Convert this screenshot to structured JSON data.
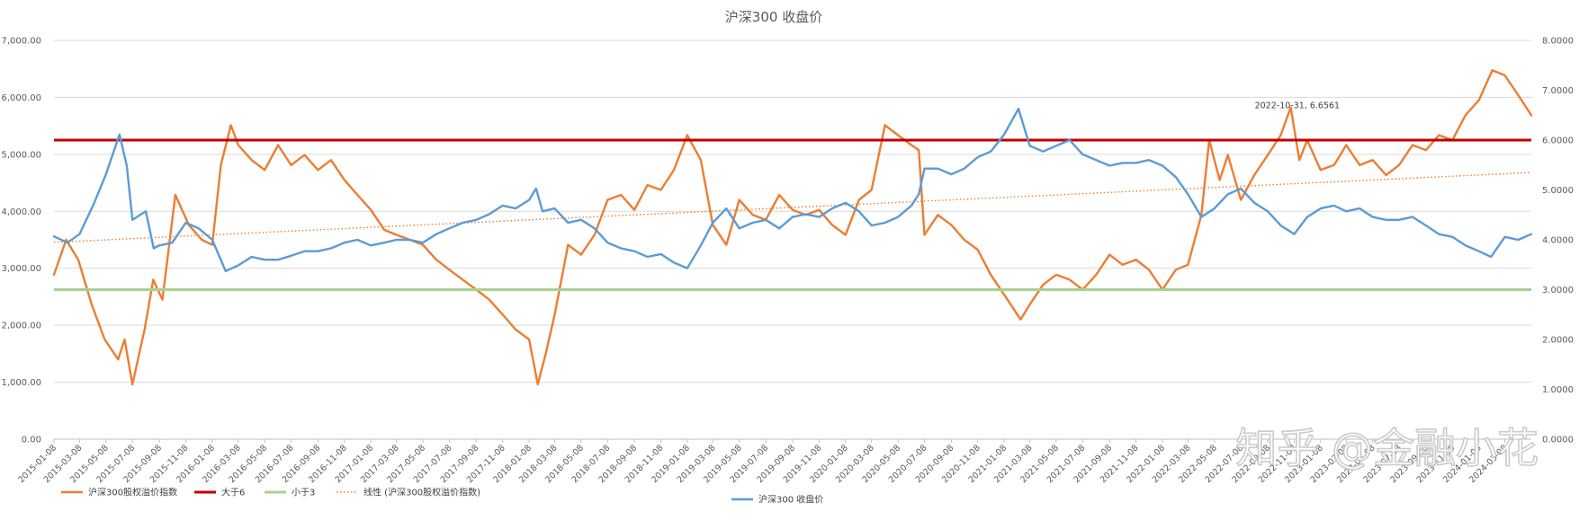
{
  "chart_data": {
    "type": "line",
    "title": "沪深300 收盘价",
    "y_left": {
      "min": 0,
      "max": 7000,
      "step": 1000,
      "ticks": [
        "0.00",
        "1,000.00",
        "2,000.00",
        "3,000.00",
        "4,000.00",
        "5,000.00",
        "6,000.00",
        "7,000.00"
      ]
    },
    "y_right": {
      "min": 0,
      "max": 8,
      "step": 1,
      "ticks": [
        "0.0000",
        "1.0000",
        "2.0000",
        "3.0000",
        "4.0000",
        "5.0000",
        "6.0000",
        "7.0000",
        "8.0000"
      ]
    },
    "x_range": [
      "2015-01-08",
      "2024-05-08"
    ],
    "x_ticks": [
      "2015-01-08",
      "2015-03-08",
      "2015-05-08",
      "2015-07-08",
      "2015-09-08",
      "2015-11-08",
      "2016-01-08",
      "2016-03-08",
      "2016-05-08",
      "2016-07-08",
      "2016-09-08",
      "2016-11-08",
      "2017-01-08",
      "2017-03-08",
      "2017-05-08",
      "2017-07-08",
      "2017-09-08",
      "2017-11-08",
      "2018-01-08",
      "2018-03-08",
      "2018-05-08",
      "2018-07-08",
      "2018-09-08",
      "2018-11-08",
      "2019-01-08",
      "2019-03-08",
      "2019-05-08",
      "2019-07-08",
      "2019-09-08",
      "2019-11-08",
      "2020-01-08",
      "2020-03-08",
      "2020-05-08",
      "2020-07-08",
      "2020-09-08",
      "2020-11-08",
      "2021-01-08",
      "2021-03-08",
      "2021-05-08",
      "2021-07-08",
      "2021-09-08",
      "2021-11-08",
      "2022-01-08",
      "2022-03-08",
      "2022-05-08",
      "2022-07-08",
      "2022-09-08",
      "2022-11-08",
      "2023-01-08",
      "2023-03-08",
      "2023-05-08",
      "2023-07-08",
      "2023-09-08",
      "2023-11-08",
      "2024-01-08",
      "2024-03-08"
    ],
    "series": [
      {
        "name": "沪深300股权溢价指数",
        "axis": "right",
        "color": "#ED7D31",
        "points": [
          [
            "2015-01-08",
            3.3
          ],
          [
            "2015-02-05",
            4.0
          ],
          [
            "2015-03-05",
            3.6
          ],
          [
            "2015-04-05",
            2.7
          ],
          [
            "2015-05-05",
            2.0
          ],
          [
            "2015-06-05",
            1.6
          ],
          [
            "2015-06-20",
            2.0
          ],
          [
            "2015-07-08",
            1.1
          ],
          [
            "2015-08-05",
            2.2
          ],
          [
            "2015-08-25",
            3.2
          ],
          [
            "2015-09-15",
            2.8
          ],
          [
            "2015-10-15",
            4.9
          ],
          [
            "2015-11-15",
            4.3
          ],
          [
            "2015-12-15",
            4.0
          ],
          [
            "2016-01-08",
            3.9
          ],
          [
            "2016-01-28",
            5.5
          ],
          [
            "2016-02-20",
            6.3
          ],
          [
            "2016-03-08",
            5.9
          ],
          [
            "2016-04-08",
            5.6
          ],
          [
            "2016-05-08",
            5.4
          ],
          [
            "2016-06-08",
            5.9
          ],
          [
            "2016-07-08",
            5.5
          ],
          [
            "2016-08-08",
            5.7
          ],
          [
            "2016-09-08",
            5.4
          ],
          [
            "2016-10-08",
            5.6
          ],
          [
            "2016-11-08",
            5.2
          ],
          [
            "2016-12-08",
            4.9
          ],
          [
            "2017-01-08",
            4.6
          ],
          [
            "2017-02-08",
            4.2
          ],
          [
            "2017-03-08",
            4.1
          ],
          [
            "2017-04-08",
            4.0
          ],
          [
            "2017-05-08",
            3.9
          ],
          [
            "2017-06-08",
            3.6
          ],
          [
            "2017-07-08",
            3.4
          ],
          [
            "2017-08-08",
            3.2
          ],
          [
            "2017-09-08",
            3.0
          ],
          [
            "2017-10-08",
            2.8
          ],
          [
            "2017-11-08",
            2.5
          ],
          [
            "2017-12-08",
            2.2
          ],
          [
            "2018-01-08",
            2.0
          ],
          [
            "2018-01-28",
            1.1
          ],
          [
            "2018-02-15",
            1.7
          ],
          [
            "2018-03-08",
            2.5
          ],
          [
            "2018-04-08",
            3.9
          ],
          [
            "2018-05-08",
            3.7
          ],
          [
            "2018-06-08",
            4.1
          ],
          [
            "2018-07-08",
            4.8
          ],
          [
            "2018-08-08",
            4.9
          ],
          [
            "2018-09-08",
            4.6
          ],
          [
            "2018-10-08",
            5.1
          ],
          [
            "2018-11-08",
            5.0
          ],
          [
            "2018-12-08",
            5.4
          ],
          [
            "2019-01-08",
            6.1
          ],
          [
            "2019-02-08",
            5.6
          ],
          [
            "2019-03-08",
            4.3
          ],
          [
            "2019-04-08",
            3.9
          ],
          [
            "2019-05-08",
            4.8
          ],
          [
            "2019-06-08",
            4.5
          ],
          [
            "2019-07-08",
            4.4
          ],
          [
            "2019-08-08",
            4.9
          ],
          [
            "2019-09-08",
            4.6
          ],
          [
            "2019-10-08",
            4.5
          ],
          [
            "2019-11-08",
            4.6
          ],
          [
            "2019-12-08",
            4.3
          ],
          [
            "2020-01-08",
            4.1
          ],
          [
            "2020-02-08",
            4.8
          ],
          [
            "2020-03-08",
            5.0
          ],
          [
            "2020-04-08",
            6.3
          ],
          [
            "2020-05-08",
            6.1
          ],
          [
            "2020-06-08",
            5.9
          ],
          [
            "2020-06-25",
            5.8
          ],
          [
            "2020-07-08",
            4.1
          ],
          [
            "2020-08-08",
            4.5
          ],
          [
            "2020-09-08",
            4.3
          ],
          [
            "2020-10-08",
            4.0
          ],
          [
            "2020-11-08",
            3.8
          ],
          [
            "2020-12-08",
            3.3
          ],
          [
            "2021-01-08",
            2.9
          ],
          [
            "2021-02-15",
            2.4
          ],
          [
            "2021-03-08",
            2.7
          ],
          [
            "2021-04-08",
            3.1
          ],
          [
            "2021-05-08",
            3.3
          ],
          [
            "2021-06-08",
            3.2
          ],
          [
            "2021-07-08",
            3.0
          ],
          [
            "2021-08-08",
            3.3
          ],
          [
            "2021-09-08",
            3.7
          ],
          [
            "2021-10-08",
            3.5
          ],
          [
            "2021-11-08",
            3.6
          ],
          [
            "2021-12-08",
            3.4
          ],
          [
            "2022-01-08",
            3.0
          ],
          [
            "2022-02-08",
            3.4
          ],
          [
            "2022-03-08",
            3.5
          ],
          [
            "2022-04-08",
            4.5
          ],
          [
            "2022-04-26",
            6.0
          ],
          [
            "2022-05-20",
            5.2
          ],
          [
            "2022-06-08",
            5.7
          ],
          [
            "2022-07-08",
            4.8
          ],
          [
            "2022-08-08",
            5.3
          ],
          [
            "2022-09-08",
            5.7
          ],
          [
            "2022-10-08",
            6.1
          ],
          [
            "2022-10-31",
            6.6561
          ],
          [
            "2022-11-20",
            5.6
          ],
          [
            "2022-12-08",
            6.0
          ],
          [
            "2023-01-08",
            5.4
          ],
          [
            "2023-02-08",
            5.5
          ],
          [
            "2023-03-08",
            5.9
          ],
          [
            "2023-04-08",
            5.5
          ],
          [
            "2023-05-08",
            5.6
          ],
          [
            "2023-06-08",
            5.3
          ],
          [
            "2023-07-08",
            5.5
          ],
          [
            "2023-08-08",
            5.9
          ],
          [
            "2023-09-08",
            5.8
          ],
          [
            "2023-10-08",
            6.1
          ],
          [
            "2023-11-08",
            6.0
          ],
          [
            "2023-12-08",
            6.5
          ],
          [
            "2024-01-08",
            6.8
          ],
          [
            "2024-02-08",
            7.4
          ],
          [
            "2024-03-08",
            7.3
          ],
          [
            "2024-04-08",
            6.9
          ],
          [
            "2024-05-08",
            6.5
          ]
        ]
      },
      {
        "name": "大于6",
        "axis": "right",
        "color": "#C00000",
        "constant": 6
      },
      {
        "name": "小于3",
        "axis": "right",
        "color": "#A9D18E",
        "constant": 3
      },
      {
        "name": "线性 (沪深300股权溢价指数)",
        "axis": "right",
        "color": "#ED7D31",
        "trendline": {
          "start": [
            "2015-01-08",
            3.95
          ],
          "end": [
            "2024-05-08",
            5.35
          ]
        }
      },
      {
        "name": "沪深300 收盘价",
        "axis": "left",
        "color": "#5B9BD5",
        "points": [
          [
            "2015-01-08",
            3560
          ],
          [
            "2015-02-08",
            3450
          ],
          [
            "2015-03-08",
            3600
          ],
          [
            "2015-04-08",
            4100
          ],
          [
            "2015-05-08",
            4650
          ],
          [
            "2015-06-08",
            5350
          ],
          [
            "2015-06-25",
            4800
          ],
          [
            "2015-07-08",
            3850
          ],
          [
            "2015-08-08",
            4000
          ],
          [
            "2015-08-26",
            3350
          ],
          [
            "2015-09-08",
            3400
          ],
          [
            "2015-10-08",
            3450
          ],
          [
            "2015-11-08",
            3800
          ],
          [
            "2015-12-08",
            3700
          ],
          [
            "2016-01-08",
            3500
          ],
          [
            "2016-02-08",
            2950
          ],
          [
            "2016-03-08",
            3050
          ],
          [
            "2016-04-08",
            3200
          ],
          [
            "2016-05-08",
            3150
          ],
          [
            "2016-06-08",
            3150
          ],
          [
            "2016-07-08",
            3220
          ],
          [
            "2016-08-08",
            3300
          ],
          [
            "2016-09-08",
            3300
          ],
          [
            "2016-10-08",
            3350
          ],
          [
            "2016-11-08",
            3450
          ],
          [
            "2016-12-08",
            3500
          ],
          [
            "2017-01-08",
            3400
          ],
          [
            "2017-02-08",
            3450
          ],
          [
            "2017-03-08",
            3500
          ],
          [
            "2017-04-08",
            3500
          ],
          [
            "2017-05-08",
            3450
          ],
          [
            "2017-06-08",
            3600
          ],
          [
            "2017-07-08",
            3700
          ],
          [
            "2017-08-08",
            3800
          ],
          [
            "2017-09-08",
            3850
          ],
          [
            "2017-10-08",
            3950
          ],
          [
            "2017-11-08",
            4100
          ],
          [
            "2017-12-08",
            4050
          ],
          [
            "2018-01-08",
            4200
          ],
          [
            "2018-01-24",
            4400
          ],
          [
            "2018-02-08",
            4000
          ],
          [
            "2018-03-08",
            4050
          ],
          [
            "2018-04-08",
            3800
          ],
          [
            "2018-05-08",
            3850
          ],
          [
            "2018-06-08",
            3700
          ],
          [
            "2018-07-08",
            3450
          ],
          [
            "2018-08-08",
            3350
          ],
          [
            "2018-09-08",
            3300
          ],
          [
            "2018-10-08",
            3200
          ],
          [
            "2018-11-08",
            3250
          ],
          [
            "2018-12-08",
            3100
          ],
          [
            "2019-01-08",
            3000
          ],
          [
            "2019-02-08",
            3400
          ],
          [
            "2019-03-08",
            3800
          ],
          [
            "2019-04-08",
            4050
          ],
          [
            "2019-05-08",
            3700
          ],
          [
            "2019-06-08",
            3800
          ],
          [
            "2019-07-08",
            3850
          ],
          [
            "2019-08-08",
            3700
          ],
          [
            "2019-09-08",
            3900
          ],
          [
            "2019-10-08",
            3950
          ],
          [
            "2019-11-08",
            3900
          ],
          [
            "2019-12-08",
            4050
          ],
          [
            "2020-01-08",
            4150
          ],
          [
            "2020-02-08",
            4000
          ],
          [
            "2020-03-08",
            3750
          ],
          [
            "2020-04-08",
            3800
          ],
          [
            "2020-05-08",
            3900
          ],
          [
            "2020-06-08",
            4100
          ],
          [
            "2020-06-25",
            4300
          ],
          [
            "2020-07-08",
            4750
          ],
          [
            "2020-08-08",
            4750
          ],
          [
            "2020-09-08",
            4650
          ],
          [
            "2020-10-08",
            4750
          ],
          [
            "2020-11-08",
            4950
          ],
          [
            "2020-12-08",
            5050
          ],
          [
            "2021-01-08",
            5350
          ],
          [
            "2021-02-10",
            5800
          ],
          [
            "2021-03-08",
            5150
          ],
          [
            "2021-04-08",
            5050
          ],
          [
            "2021-05-08",
            5150
          ],
          [
            "2021-06-08",
            5250
          ],
          [
            "2021-07-08",
            5000
          ],
          [
            "2021-08-08",
            4900
          ],
          [
            "2021-09-08",
            4800
          ],
          [
            "2021-10-08",
            4850
          ],
          [
            "2021-11-08",
            4850
          ],
          [
            "2021-12-08",
            4900
          ],
          [
            "2022-01-08",
            4800
          ],
          [
            "2022-02-08",
            4600
          ],
          [
            "2022-03-08",
            4300
          ],
          [
            "2022-04-08",
            3900
          ],
          [
            "2022-05-08",
            4050
          ],
          [
            "2022-06-08",
            4300
          ],
          [
            "2022-07-08",
            4400
          ],
          [
            "2022-08-08",
            4150
          ],
          [
            "2022-09-08",
            4000
          ],
          [
            "2022-10-08",
            3750
          ],
          [
            "2022-11-08",
            3600
          ],
          [
            "2022-12-08",
            3900
          ],
          [
            "2023-01-08",
            4050
          ],
          [
            "2023-02-08",
            4100
          ],
          [
            "2023-03-08",
            4000
          ],
          [
            "2023-04-08",
            4050
          ],
          [
            "2023-05-08",
            3900
          ],
          [
            "2023-06-08",
            3850
          ],
          [
            "2023-07-08",
            3850
          ],
          [
            "2023-08-08",
            3900
          ],
          [
            "2023-09-08",
            3750
          ],
          [
            "2023-10-08",
            3600
          ],
          [
            "2023-11-08",
            3550
          ],
          [
            "2023-12-08",
            3400
          ],
          [
            "2024-01-08",
            3300
          ],
          [
            "2024-02-05",
            3200
          ],
          [
            "2024-03-08",
            3550
          ],
          [
            "2024-04-08",
            3500
          ],
          [
            "2024-05-08",
            3600
          ]
        ]
      }
    ],
    "annotation": {
      "text": "2022-10-31, 6.6561",
      "x": "2022-10-31",
      "y": 6.6561,
      "axis": "right"
    },
    "legend_placement": "bottom",
    "grid": "horizontal"
  },
  "watermark": "知乎 @金融小花"
}
